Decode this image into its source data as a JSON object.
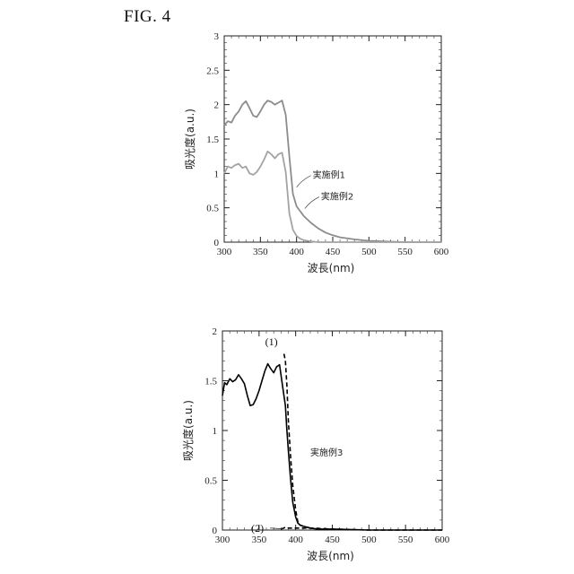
{
  "figure_label": "FIG. 4",
  "chart_data": [
    {
      "type": "line",
      "title": "",
      "xlabel": "波長(nm)",
      "ylabel": "吸光度(a.u.)",
      "xlim": [
        300,
        600
      ],
      "ylim": [
        0,
        3
      ],
      "xticks": [
        300,
        350,
        400,
        450,
        500,
        550,
        600
      ],
      "yticks": [
        0,
        0.5,
        1,
        1.5,
        2,
        2.5,
        3
      ],
      "ytick_labels": [
        "0",
        "0.5",
        "1",
        "1.5",
        "2",
        "2.5",
        "3"
      ],
      "grid": false,
      "series": [
        {
          "name": "実施例1",
          "color": "#8c8c8c",
          "dash": "solid",
          "x": [
            300,
            305,
            310,
            315,
            320,
            325,
            330,
            335,
            340,
            345,
            350,
            355,
            360,
            365,
            370,
            375,
            380,
            385,
            390,
            395,
            400,
            405,
            410,
            420,
            430,
            440,
            450,
            460,
            480,
            500,
            520,
            550,
            600
          ],
          "y": [
            1.7,
            1.76,
            1.74,
            1.84,
            1.9,
            2.0,
            2.05,
            1.95,
            1.84,
            1.82,
            1.9,
            2.0,
            2.06,
            2.04,
            2.0,
            2.03,
            2.06,
            1.85,
            1.25,
            0.7,
            0.52,
            0.45,
            0.38,
            0.28,
            0.2,
            0.14,
            0.1,
            0.07,
            0.04,
            0.02,
            0.01,
            0.0,
            0.0
          ]
        },
        {
          "name": "実施例2",
          "color": "#a3a3a3",
          "dash": "solid",
          "x": [
            300,
            305,
            310,
            315,
            320,
            325,
            330,
            335,
            340,
            345,
            350,
            355,
            360,
            365,
            370,
            375,
            380,
            385,
            390,
            395,
            400,
            405,
            410,
            420,
            430,
            450,
            500,
            600
          ],
          "y": [
            1.0,
            1.1,
            1.08,
            1.12,
            1.14,
            1.08,
            1.1,
            1.0,
            0.98,
            1.02,
            1.1,
            1.2,
            1.32,
            1.28,
            1.22,
            1.28,
            1.3,
            1.02,
            0.42,
            0.18,
            0.09,
            0.05,
            0.03,
            0.01,
            0.0,
            0.0,
            0.0,
            0.0
          ]
        }
      ],
      "annotations": [
        {
          "text": "実施例1",
          "x": 400,
          "y": 0.93
        },
        {
          "text": "実施例2",
          "x": 409,
          "y": 0.62
        }
      ]
    },
    {
      "type": "line",
      "title": "",
      "xlabel": "波長(nm)",
      "ylabel": "吸光度(a.u.)",
      "xlim": [
        300,
        600
      ],
      "ylim": [
        0,
        2
      ],
      "xticks": [
        300,
        350,
        400,
        450,
        500,
        550,
        600
      ],
      "yticks": [
        0,
        0.5,
        1,
        1.5,
        2
      ],
      "ytick_labels": [
        "0",
        "0.5",
        "1",
        "1.5",
        "2"
      ],
      "grid": false,
      "series": [
        {
          "name": "(1)",
          "color": "#000000",
          "dash": "solid",
          "x": [
            300,
            303,
            306,
            310,
            314,
            318,
            322,
            326,
            330,
            334,
            338,
            342,
            346,
            350,
            354,
            358,
            362,
            366,
            370,
            374,
            378,
            382,
            386,
            388,
            390,
            393,
            396,
            400,
            403,
            406,
            410,
            420,
            430,
            450,
            500,
            550,
            600
          ],
          "y": [
            1.35,
            1.48,
            1.46,
            1.52,
            1.49,
            1.51,
            1.56,
            1.52,
            1.47,
            1.35,
            1.25,
            1.26,
            1.32,
            1.4,
            1.5,
            1.6,
            1.67,
            1.62,
            1.58,
            1.64,
            1.66,
            1.45,
            1.25,
            1.0,
            0.8,
            0.52,
            0.28,
            0.13,
            0.07,
            0.05,
            0.04,
            0.02,
            0.01,
            0.01,
            0.0,
            0.0,
            0.0
          ]
        },
        {
          "name": "(2)",
          "color": "#000000",
          "dash": "dashed",
          "x": [
            380,
            384,
            386,
            390,
            395,
            400,
            405,
            410,
            420,
            450,
            500,
            600
          ],
          "y": [
            0.01,
            0.02,
            0.03,
            0.02,
            0.02,
            0.02,
            0.02,
            0.02,
            0.02,
            0.01,
            0.0,
            0.0
          ]
        },
        {
          "name": "(1) dashed",
          "color": "#000000",
          "dash": "dashed",
          "x": [
            384,
            386,
            388,
            390,
            393,
            396,
            400,
            403,
            406,
            410,
            420
          ],
          "y": [
            1.77,
            1.7,
            1.45,
            1.1,
            0.75,
            0.45,
            0.2,
            0.08,
            0.05,
            0.04,
            0.02
          ]
        }
      ],
      "annotations": [
        {
          "text": "(1)",
          "x": 384,
          "y": 1.8
        },
        {
          "text": "(2)",
          "x": 370,
          "y": 0.02
        },
        {
          "text": "実施例3",
          "x": 420,
          "y": 0.75
        }
      ]
    }
  ]
}
